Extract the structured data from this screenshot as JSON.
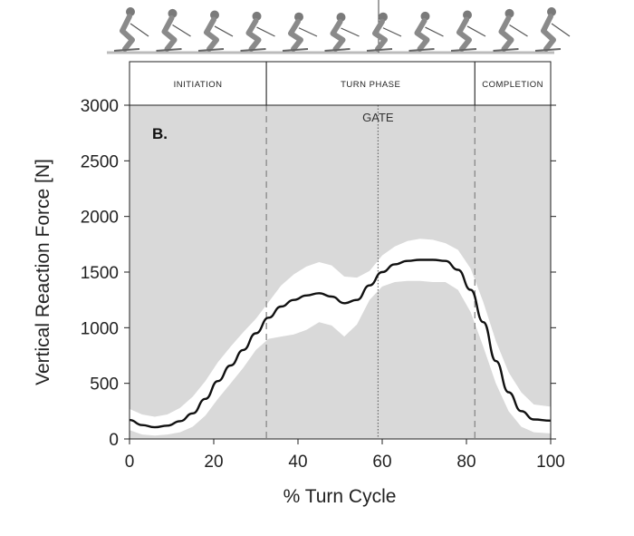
{
  "chart_data": {
    "type": "line",
    "panel_label": "B.",
    "xlabel": "% Turn Cycle",
    "ylabel": "Vertical Reaction Force  [N]",
    "xlim": [
      0,
      100
    ],
    "ylim": [
      0,
      3000
    ],
    "x_ticks": [
      0,
      20,
      40,
      60,
      80,
      100
    ],
    "y_ticks": [
      0,
      500,
      1000,
      1500,
      2000,
      2500,
      3000
    ],
    "phases": [
      {
        "label": "INITIATION",
        "start": 0,
        "end": 32.5
      },
      {
        "label": "TURN PHASE",
        "start": 32.5,
        "end": 82
      },
      {
        "label": "COMPLETION",
        "start": 82,
        "end": 100
      }
    ],
    "phase_boundaries": [
      32.5,
      82
    ],
    "gate": {
      "label": "GATE",
      "x": 59
    },
    "series": [
      {
        "style": "mean",
        "color": "#111111",
        "x": [
          0,
          3,
          6,
          9,
          12,
          15,
          18,
          21,
          24,
          27,
          30,
          33,
          36,
          39,
          42,
          45,
          48,
          51,
          54,
          57,
          60,
          63,
          66,
          69,
          72,
          75,
          78,
          81,
          84,
          87,
          90,
          93,
          96,
          100
        ],
        "values": [
          170,
          125,
          105,
          120,
          160,
          230,
          360,
          520,
          660,
          800,
          950,
          1090,
          1190,
          1250,
          1290,
          1310,
          1280,
          1220,
          1250,
          1380,
          1500,
          1570,
          1600,
          1610,
          1610,
          1600,
          1520,
          1340,
          1050,
          700,
          420,
          250,
          175,
          165
        ]
      }
    ],
    "band": {
      "color": "#ffffff",
      "x": [
        0,
        3,
        6,
        9,
        12,
        15,
        18,
        21,
        24,
        27,
        30,
        33,
        36,
        39,
        42,
        45,
        48,
        51,
        54,
        57,
        60,
        63,
        66,
        69,
        72,
        75,
        78,
        81,
        84,
        87,
        90,
        93,
        96,
        100
      ],
      "upper": [
        270,
        220,
        200,
        220,
        280,
        380,
        520,
        690,
        830,
        960,
        1080,
        1230,
        1380,
        1480,
        1550,
        1590,
        1560,
        1460,
        1450,
        1510,
        1650,
        1730,
        1780,
        1800,
        1790,
        1760,
        1700,
        1530,
        1230,
        880,
        600,
        420,
        310,
        290
      ],
      "lower": [
        80,
        40,
        30,
        40,
        60,
        110,
        210,
        360,
        500,
        640,
        800,
        900,
        920,
        940,
        980,
        1050,
        1020,
        920,
        1030,
        1250,
        1370,
        1410,
        1420,
        1420,
        1410,
        1410,
        1340,
        1140,
        830,
        500,
        250,
        110,
        60,
        50
      ]
    },
    "colors": {
      "plot_background": "#d9d9d9",
      "band": "#ffffff",
      "mean_line": "#111111",
      "boundary_line": "#888888"
    },
    "grid": false,
    "legend": "none"
  },
  "header_illustration": "skier-sequence-illustration"
}
